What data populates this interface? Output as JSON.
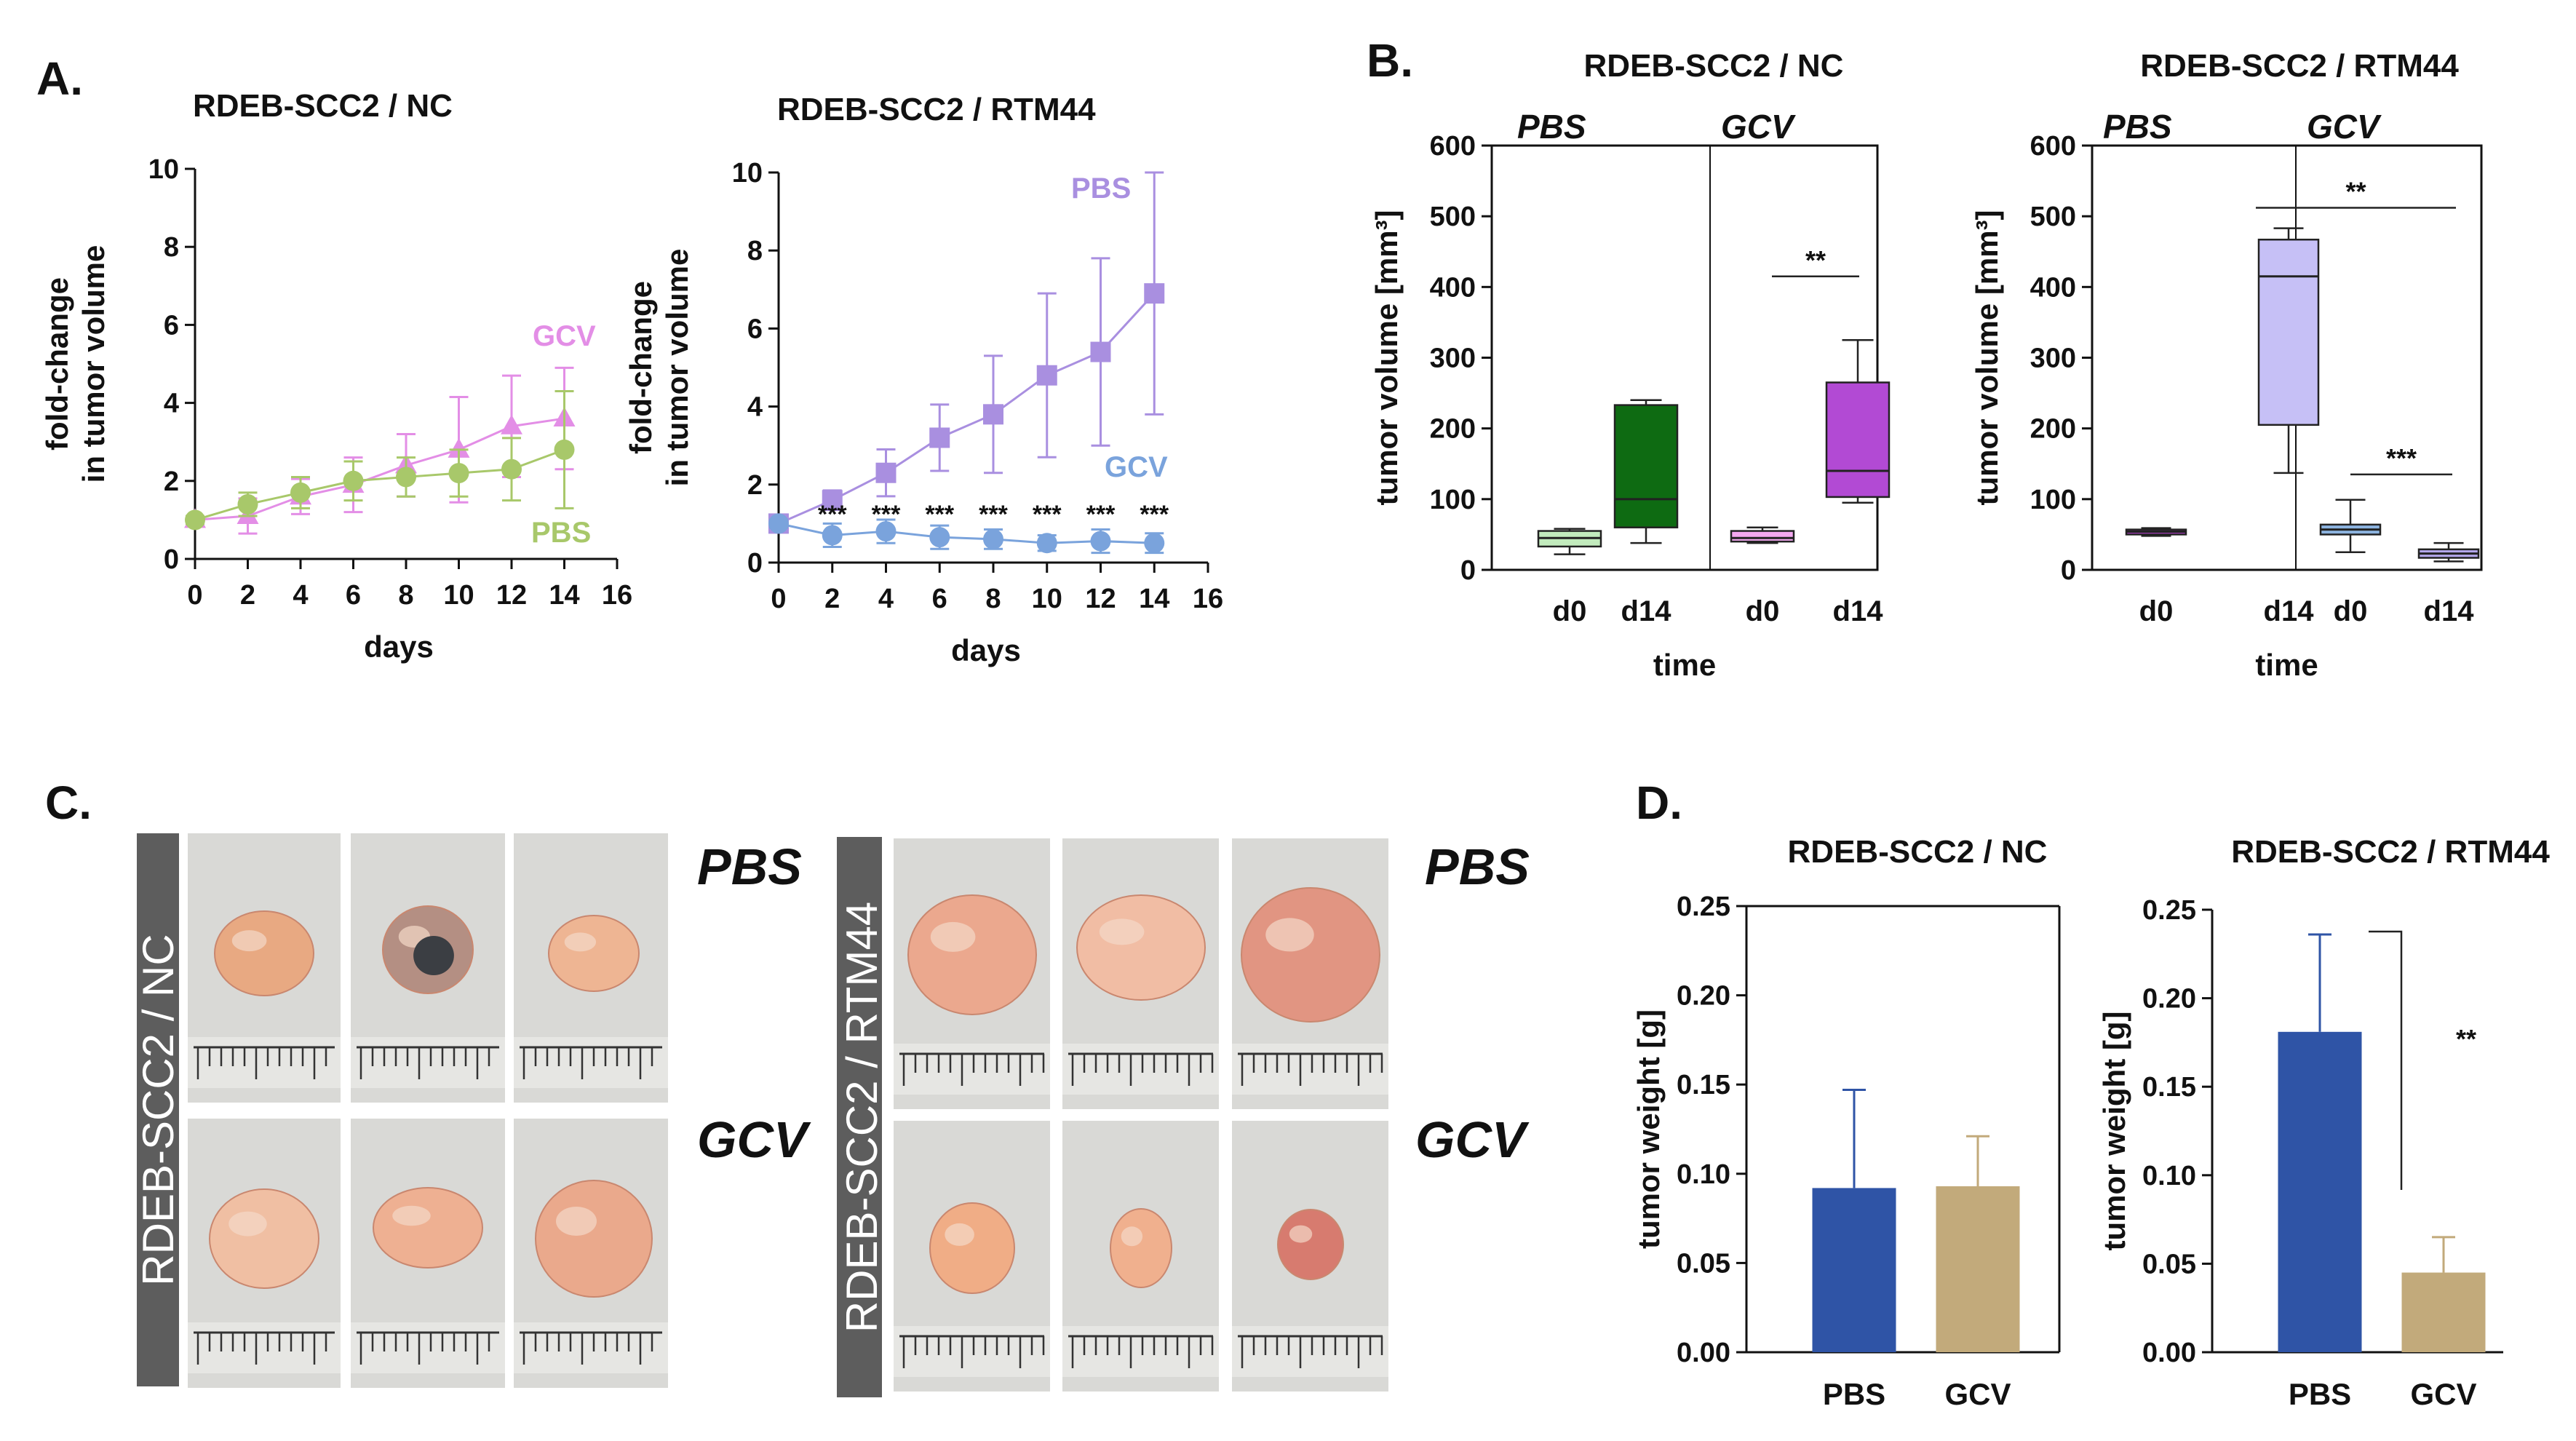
{
  "panel_labels": {
    "A": "A.",
    "B": "B.",
    "C": "C.",
    "D": "D."
  },
  "colors": {
    "gcv_pink": "#e38ee6",
    "pbs_green": "#a8c86a",
    "pbs_purple": "#a98fe0",
    "gcv_blue": "#7aa3dc",
    "nc_d0": "#c2ebbd",
    "nc_d14": "#0e6b12",
    "gcv_d0_pink": "#f4a8f0",
    "gcv_d14_purple": "#b24ad4",
    "rtm_pbs_d0": "#a43dba",
    "rtm_pbs_d14": "#c6c0f6",
    "rtm_gcv_d0": "#8db4e0",
    "rtm_gcv_d14": "#b4a8ec",
    "bar_pbs": "#2f54a6",
    "bar_gcv": "#c2aa7b",
    "photo_bg": "#d9d9d6",
    "sidebar": "#5d5d5d"
  },
  "chart_data": [
    {
      "id": "A1",
      "type": "line",
      "title": "RDEB-SCC2 / NC",
      "xlabel": "days",
      "ylabel": [
        "fold-change",
        "in tumor volume"
      ],
      "xlim": [
        0,
        16
      ],
      "ylim": [
        0,
        10
      ],
      "xticks": [
        0,
        2,
        4,
        6,
        8,
        10,
        12,
        14,
        16
      ],
      "yticks": [
        0,
        2,
        4,
        6,
        8,
        10
      ],
      "series": [
        {
          "name": "GCV",
          "x": [
            0,
            2,
            4,
            6,
            8,
            10,
            12,
            14
          ],
          "values": [
            1.0,
            1.1,
            1.6,
            1.9,
            2.4,
            2.8,
            3.4,
            3.6
          ],
          "err": [
            0.1,
            0.45,
            0.45,
            0.7,
            0.8,
            1.35,
            1.3,
            1.3
          ]
        },
        {
          "name": "PBS",
          "x": [
            0,
            2,
            4,
            6,
            8,
            10,
            12,
            14
          ],
          "values": [
            1.0,
            1.4,
            1.7,
            2.0,
            2.1,
            2.2,
            2.3,
            2.8
          ],
          "err": [
            0.1,
            0.3,
            0.4,
            0.5,
            0.5,
            0.6,
            0.8,
            1.5
          ]
        }
      ]
    },
    {
      "id": "A2",
      "type": "line",
      "title": "RDEB-SCC2 / RTM44",
      "xlabel": "days",
      "ylabel": [
        "fold-change",
        "in tumor volume"
      ],
      "xlim": [
        0,
        16
      ],
      "ylim": [
        0,
        10
      ],
      "xticks": [
        0,
        2,
        4,
        6,
        8,
        10,
        12,
        14,
        16
      ],
      "yticks": [
        0,
        2,
        4,
        6,
        8,
        10
      ],
      "series": [
        {
          "name": "PBS",
          "x": [
            0,
            2,
            4,
            6,
            8,
            10,
            12,
            14
          ],
          "values": [
            1.0,
            1.6,
            2.3,
            3.2,
            3.8,
            4.8,
            5.4,
            6.9
          ],
          "err": [
            0.1,
            0.25,
            0.6,
            0.85,
            1.5,
            2.1,
            2.4,
            3.1
          ]
        },
        {
          "name": "GCV",
          "x": [
            0,
            2,
            4,
            6,
            8,
            10,
            12,
            14
          ],
          "values": [
            1.0,
            0.7,
            0.8,
            0.65,
            0.6,
            0.5,
            0.55,
            0.5
          ],
          "err": [
            0.1,
            0.3,
            0.3,
            0.3,
            0.25,
            0.2,
            0.3,
            0.25
          ]
        }
      ],
      "annotations": [
        "***",
        "***",
        "***",
        "***",
        "***",
        "***",
        "***"
      ]
    },
    {
      "id": "B1",
      "type": "box",
      "title": "RDEB-SCC2 / NC",
      "xlabel": "time",
      "ylabel": "tumor volume [mm³]",
      "ylim": [
        0,
        600
      ],
      "yticks": [
        0,
        100,
        200,
        300,
        400,
        500,
        600
      ],
      "groups": [
        "PBS",
        "GCV"
      ],
      "categories": [
        "d0",
        "d14",
        "d0",
        "d14"
      ],
      "boxes": [
        {
          "min": 22,
          "q1": 33,
          "median": 45,
          "q3": 55,
          "max": 58
        },
        {
          "min": 38,
          "q1": 60,
          "median": 100,
          "q3": 233,
          "max": 240
        },
        {
          "min": 38,
          "q1": 40,
          "median": 45,
          "q3": 55,
          "max": 60
        },
        {
          "min": 95,
          "q1": 103,
          "median": 140,
          "q3": 265,
          "max": 325
        }
      ],
      "significance": [
        {
          "label": "**",
          "between": [
            "d0 GCV",
            "d14 GCV"
          ]
        }
      ]
    },
    {
      "id": "B2",
      "type": "box",
      "title": "RDEB-SCC2 / RTM44",
      "xlabel": "time",
      "ylabel": "tumor volume [mm³]",
      "ylim": [
        0,
        600
      ],
      "yticks": [
        0,
        100,
        200,
        300,
        400,
        500,
        600
      ],
      "groups": [
        "PBS",
        "GCV"
      ],
      "categories": [
        "d0",
        "d14",
        "d0",
        "d14"
      ],
      "boxes": [
        {
          "min": 48,
          "q1": 50,
          "median": 54,
          "q3": 57,
          "max": 59
        },
        {
          "min": 137,
          "q1": 205,
          "median": 415,
          "q3": 467,
          "max": 483
        },
        {
          "min": 25,
          "q1": 50,
          "median": 57,
          "q3": 64,
          "max": 99
        },
        {
          "min": 12,
          "q1": 17,
          "median": 23,
          "q3": 29,
          "max": 38
        }
      ],
      "significance": [
        {
          "label": "**",
          "between": [
            "d14 PBS",
            "d14 GCV"
          ]
        },
        {
          "label": "***",
          "between": [
            "d0 GCV",
            "d14 GCV"
          ]
        }
      ]
    },
    {
      "id": "D1",
      "type": "bar",
      "title": "RDEB-SCC2 / NC",
      "xlabel": "",
      "ylabel": "tumor weight [g]",
      "ylim": [
        0,
        0.25
      ],
      "yticks": [
        "0.00",
        "0.05",
        "0.10",
        "0.15",
        "0.20",
        "0.25"
      ],
      "categories": [
        "PBS",
        "GCV"
      ],
      "values": [
        0.092,
        0.093
      ],
      "err": [
        0.055,
        0.028
      ]
    },
    {
      "id": "D2",
      "type": "bar",
      "title": "RDEB-SCC2 / RTM44",
      "xlabel": "",
      "ylabel": "tumor weight [g]",
      "ylim": [
        0,
        0.25
      ],
      "yticks": [
        "0.00",
        "0.05",
        "0.10",
        "0.15",
        "0.20",
        "0.25"
      ],
      "categories": [
        "PBS",
        "GCV"
      ],
      "values": [
        0.181,
        0.045
      ],
      "err": [
        0.055,
        0.02
      ],
      "significance": [
        {
          "label": "**",
          "between": [
            "PBS",
            "GCV"
          ]
        }
      ]
    }
  ],
  "panel_c": {
    "groups": [
      {
        "side_label": "RDEB-SCC2 / NC",
        "row_labels": [
          "PBS",
          "GCV"
        ]
      },
      {
        "side_label": "RDEB-SCC2 / RTM44",
        "row_labels": [
          "PBS",
          "GCV"
        ]
      }
    ]
  }
}
